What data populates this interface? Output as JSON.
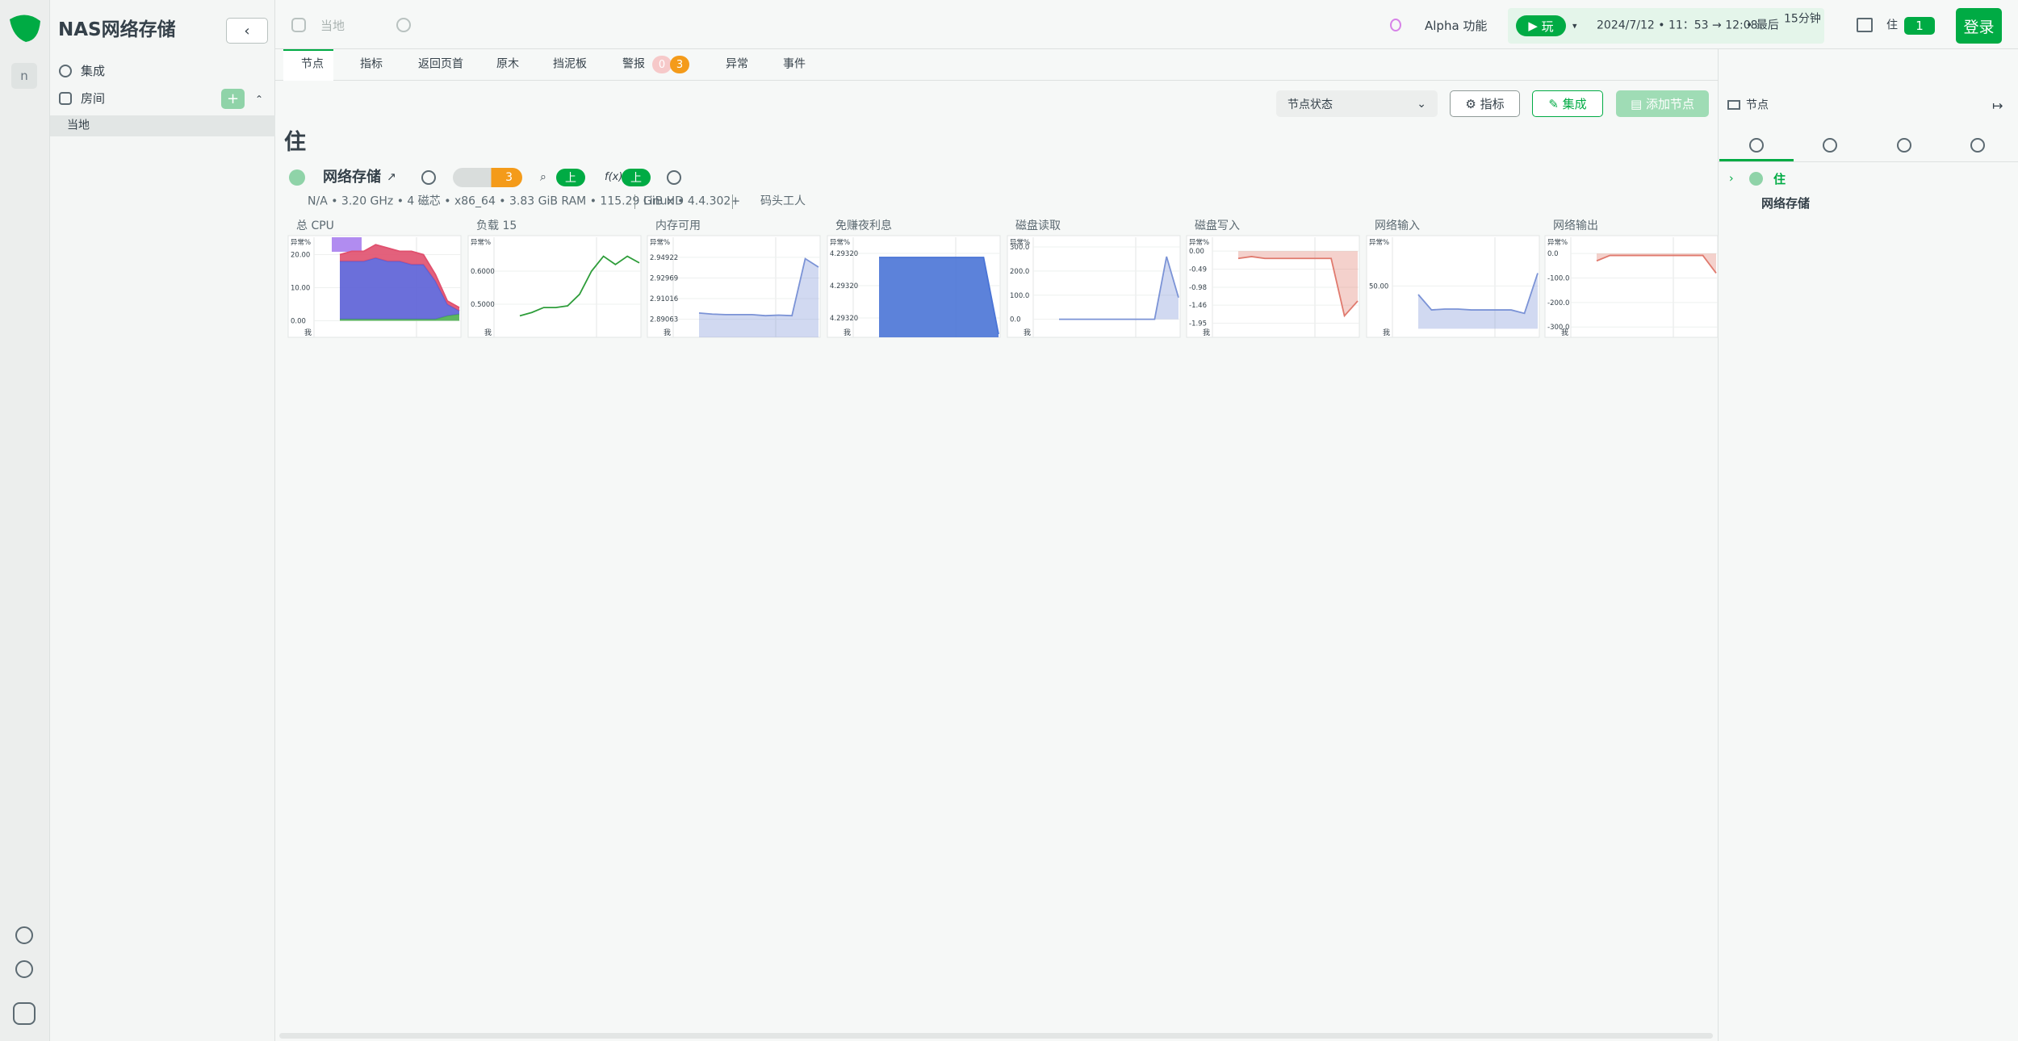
{
  "sidebar": {
    "title": "NAS网络存储",
    "rail_initial": "n",
    "items": [
      "集成",
      "房间"
    ],
    "room": "当地"
  },
  "topbar": {
    "space": "当地",
    "alpha": "Alpha 功能",
    "play": "玩",
    "time_range": "2024/7/12 • 11：53 → 12:08",
    "last": "• 最后",
    "duration": "15分钟",
    "node": "住",
    "node_count": "1",
    "login": "登录"
  },
  "tabs": [
    "节点",
    "指标",
    "返回页首",
    "原木",
    "挡泥板",
    "警报",
    "异常",
    "事件"
  ],
  "alert_counts": [
    "0",
    "3"
  ],
  "toolbar": {
    "select": "节点状态",
    "metrics": "指标",
    "integrate": "集成",
    "add_node": "添加节点"
  },
  "room_title": "住",
  "node": {
    "name": "网络存储",
    "alerts": "3",
    "status_1": "上",
    "status_2": "上",
    "specs": "N/A • 3.20 GHz • 4 磁芯 • x86_64 • 3.83 GiB RAM • 115.29 GiB HD",
    "os": "Linux • 4.4.302+",
    "tag": "码头工人"
  },
  "charts": [
    {
      "type": "stacked-area",
      "title": "总 CPU",
      "y_label": "异常%",
      "x_label": "我",
      "ylim": [
        -5,
        25
      ],
      "yticks": [
        {
          "value": 0,
          "label": "0.00"
        },
        {
          "value": 10,
          "label": "10.00"
        },
        {
          "value": 20,
          "label": "20.00"
        }
      ],
      "series": [
        {
          "color": "#4caf50",
          "values": [
            0.5,
            0.5,
            0.5,
            0.5,
            0.5,
            0.5,
            0.5,
            0.5,
            0.5,
            1.5,
            2
          ]
        },
        {
          "color": "#5b5fd6",
          "values": [
            17.5,
            17.5,
            17.5,
            18.5,
            17.5,
            17.5,
            16.5,
            16.5,
            11.5,
            3.5,
            1
          ]
        },
        {
          "color": "#e0506e",
          "values": [
            2,
            3,
            3,
            4,
            4,
            3,
            4,
            3,
            2,
            1,
            1
          ]
        }
      ]
    },
    {
      "type": "line",
      "title": "负载 15",
      "y_label": "异常%",
      "x_label": "我",
      "ylim": [
        0.4,
        0.7
      ],
      "yticks": [
        {
          "value": 0.5,
          "label": "0.5000"
        },
        {
          "value": 0.6,
          "label": "0.6000"
        }
      ],
      "series": [
        {
          "color": "#2e9d3a",
          "values": [
            0.465,
            0.475,
            0.49,
            0.49,
            0.495,
            0.53,
            0.6,
            0.645,
            0.62,
            0.645,
            0.625
          ]
        }
      ]
    },
    {
      "type": "area",
      "title": "内存可用",
      "y_label": "异常%",
      "x_label": "我",
      "ylim": [
        2.8735,
        2.9675
      ],
      "yticks": [
        2.89063,
        2.91016,
        2.92969,
        2.94922
      ],
      "series": [
        {
          "color": "#7b93d6",
          "values": [
            2.8965,
            2.8955,
            2.895,
            2.895,
            2.895,
            2.894,
            2.8945,
            2.894,
            2.948,
            2.94
          ]
        }
      ]
    },
    {
      "type": "area",
      "title": "免赚夜利息",
      "y_label": "异常%",
      "x_label": "我",
      "ylim": [
        4.2931936,
        4.2932059
      ],
      "yticks": [
        {
          "value": 4.293196,
          "label": "4.29320"
        },
        {
          "value": 4.2932,
          "label": "4.29320"
        },
        {
          "value": 4.293204,
          "label": "4.29320"
        }
      ],
      "series": [
        {
          "color": "#4a74d6",
          "values": [
            4.2932035,
            4.2932035,
            4.2932035,
            4.2932035,
            4.2932035,
            4.2932035,
            4.2932035,
            4.2932035,
            4.293194
          ]
        }
      ]
    },
    {
      "type": "area",
      "title": "磁盘读取",
      "y_label": "异常%",
      "x_label": "我",
      "ylim": [
        -75,
        337
      ],
      "yticks": [
        {
          "value": 0,
          "label": "0.0"
        },
        {
          "value": 100,
          "label": "100.0"
        },
        {
          "value": 200,
          "label": "200.0"
        },
        {
          "value": 300,
          "label": "300.0"
        }
      ],
      "series": [
        {
          "color": "#7b93d6",
          "values": [
            0,
            0,
            0,
            0,
            0,
            0,
            0,
            0,
            0,
            260,
            90
          ]
        }
      ]
    },
    {
      "type": "area",
      "title": "磁盘写入",
      "y_label": "异常%",
      "x_label": "我",
      "ylim": [
        -2.33,
        0.35
      ],
      "yticks": [
        {
          "value": -1.95,
          "label": "-1.95"
        },
        {
          "value": -1.46,
          "label": "-1.46"
        },
        {
          "value": -0.98,
          "label": "-0.98"
        },
        {
          "value": -0.49,
          "label": "-0.49"
        },
        {
          "value": 0,
          "label": "0.00"
        }
      ],
      "series": [
        {
          "color": "#e07a6e",
          "values": [
            -0.2,
            -0.15,
            -0.2,
            -0.2,
            -0.2,
            -0.2,
            -0.2,
            -0.2,
            -1.75,
            -1.35
          ]
        }
      ]
    },
    {
      "type": "area",
      "title": "网络输入",
      "y_label": "异常%",
      "x_label": "我",
      "ylim": [
        -10,
        106
      ],
      "yticks": [
        {
          "value": 50,
          "label": "50.00"
        }
      ],
      "series": [
        {
          "color": "#7b93d6",
          "values": [
            40,
            22,
            23,
            23,
            22,
            22,
            22,
            22,
            18,
            65
          ]
        }
      ]
    },
    {
      "type": "area",
      "title": "网络输出",
      "y_label": "异常%",
      "x_label": "我",
      "ylim": [
        -342,
        63
      ],
      "yticks": [
        {
          "value": -300,
          "label": "-300.0"
        },
        {
          "value": -200,
          "label": "-200.0"
        },
        {
          "value": -100,
          "label": "-100.0"
        },
        {
          "value": 0,
          "label": "0.0"
        }
      ],
      "series": [
        {
          "color": "#e07a6e",
          "values": [
            -30,
            -8,
            -8,
            -8,
            -8,
            -8,
            -8,
            -8,
            -8,
            -80
          ]
        }
      ]
    }
  ],
  "right_panel": {
    "title": "节点",
    "group": "住",
    "node": "网络存储"
  }
}
